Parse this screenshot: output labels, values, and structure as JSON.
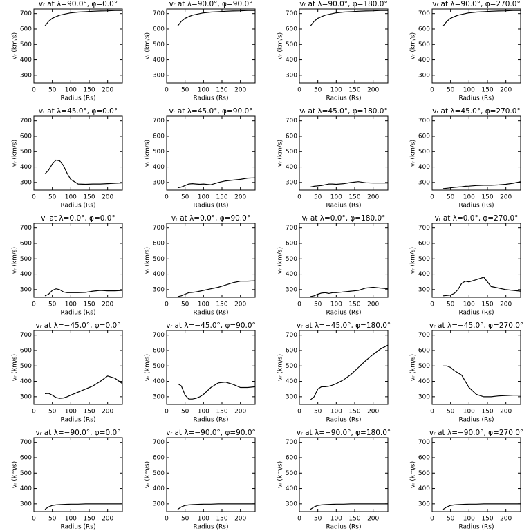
{
  "chart_data": [
    {
      "type": "line",
      "title": "vᵣ at λ=90.0°, φ=0.0°",
      "xlabel": "Radius (Rs)",
      "ylabel": "vᵣ (km/s)",
      "color": "#000000",
      "xlim": [
        0,
        240
      ],
      "ylim": [
        250,
        730
      ],
      "xticks": [
        0,
        50,
        100,
        150,
        200
      ],
      "yticks": [
        300,
        400,
        500,
        600,
        700
      ],
      "x": [
        30,
        40,
        50,
        60,
        70,
        80,
        90,
        100,
        120,
        140,
        160,
        180,
        200,
        220,
        240
      ],
      "values": [
        620,
        650,
        670,
        680,
        690,
        695,
        700,
        705,
        710,
        712,
        715,
        717,
        718,
        720,
        720
      ]
    },
    {
      "type": "line",
      "title": "vᵣ at λ=90.0°, φ=90.0°",
      "xlabel": "Radius (Rs)",
      "ylabel": "vᵣ (km/s)",
      "color": "#000000",
      "xlim": [
        0,
        240
      ],
      "ylim": [
        250,
        730
      ],
      "xticks": [
        0,
        50,
        100,
        150,
        200
      ],
      "yticks": [
        300,
        400,
        500,
        600,
        700
      ],
      "x": [
        30,
        40,
        50,
        60,
        70,
        80,
        90,
        100,
        120,
        140,
        160,
        180,
        200,
        220,
        240
      ],
      "values": [
        620,
        650,
        670,
        680,
        690,
        695,
        700,
        705,
        710,
        712,
        715,
        717,
        718,
        720,
        720
      ]
    },
    {
      "type": "line",
      "title": "vᵣ at λ=90.0°, φ=180.0°",
      "xlabel": "Radius (Rs)",
      "ylabel": "vᵣ (km/s)",
      "color": "#000000",
      "xlim": [
        0,
        240
      ],
      "ylim": [
        250,
        730
      ],
      "xticks": [
        0,
        50,
        100,
        150,
        200
      ],
      "yticks": [
        300,
        400,
        500,
        600,
        700
      ],
      "x": [
        30,
        40,
        50,
        60,
        70,
        80,
        90,
        100,
        120,
        140,
        160,
        180,
        200,
        220,
        240
      ],
      "values": [
        620,
        650,
        670,
        680,
        690,
        695,
        700,
        705,
        710,
        712,
        715,
        717,
        718,
        720,
        720
      ]
    },
    {
      "type": "line",
      "title": "vᵣ at λ=90.0°, φ=270.0°",
      "xlabel": "Radius (Rs)",
      "ylabel": "vᵣ (km/s)",
      "color": "#000000",
      "xlim": [
        0,
        240
      ],
      "ylim": [
        250,
        730
      ],
      "xticks": [
        0,
        50,
        100,
        150,
        200
      ],
      "yticks": [
        300,
        400,
        500,
        600,
        700
      ],
      "x": [
        30,
        40,
        50,
        60,
        70,
        80,
        90,
        100,
        120,
        140,
        160,
        180,
        200,
        220,
        240
      ],
      "values": [
        620,
        650,
        670,
        680,
        690,
        695,
        700,
        705,
        710,
        712,
        715,
        717,
        718,
        720,
        720
      ]
    },
    {
      "type": "line",
      "title": "vᵣ at λ=45.0°, φ=0.0°",
      "xlabel": "Radius (Rs)",
      "ylabel": "vᵣ (km/s)",
      "color": "#000000",
      "xlim": [
        0,
        240
      ],
      "ylim": [
        250,
        730
      ],
      "xticks": [
        0,
        50,
        100,
        150,
        200
      ],
      "yticks": [
        300,
        400,
        500,
        600,
        700
      ],
      "x": [
        30,
        40,
        50,
        60,
        70,
        80,
        90,
        100,
        120,
        140,
        160,
        180,
        200,
        220,
        240
      ],
      "values": [
        355,
        380,
        420,
        445,
        440,
        410,
        360,
        320,
        290,
        288,
        290,
        290,
        292,
        295,
        297
      ]
    },
    {
      "type": "line",
      "title": "vᵣ at λ=45.0°, φ=90.0°",
      "xlabel": "Radius (Rs)",
      "ylabel": "vᵣ (km/s)",
      "color": "#000000",
      "xlim": [
        0,
        240
      ],
      "ylim": [
        250,
        730
      ],
      "xticks": [
        0,
        50,
        100,
        150,
        200
      ],
      "yticks": [
        300,
        400,
        500,
        600,
        700
      ],
      "x": [
        30,
        40,
        50,
        60,
        70,
        80,
        90,
        100,
        120,
        140,
        160,
        180,
        200,
        220,
        240
      ],
      "values": [
        265,
        270,
        280,
        290,
        292,
        290,
        288,
        290,
        285,
        300,
        310,
        315,
        320,
        328,
        330
      ]
    },
    {
      "type": "line",
      "title": "vᵣ at λ=45.0°, φ=180.0°",
      "xlabel": "Radius (Rs)",
      "ylabel": "vᵣ (km/s)",
      "color": "#000000",
      "xlim": [
        0,
        240
      ],
      "ylim": [
        250,
        730
      ],
      "xticks": [
        0,
        50,
        100,
        150,
        200
      ],
      "yticks": [
        300,
        400,
        500,
        600,
        700
      ],
      "x": [
        30,
        40,
        50,
        60,
        70,
        80,
        90,
        100,
        120,
        140,
        160,
        180,
        200,
        220,
        240
      ],
      "values": [
        270,
        275,
        278,
        280,
        285,
        290,
        290,
        288,
        292,
        300,
        305,
        298,
        296,
        296,
        296
      ]
    },
    {
      "type": "line",
      "title": "vᵣ at λ=45.0°, φ=270.0°",
      "xlabel": "Radius (Rs)",
      "ylabel": "vᵣ (km/s)",
      "color": "#000000",
      "xlim": [
        0,
        240
      ],
      "ylim": [
        250,
        730
      ],
      "xticks": [
        0,
        50,
        100,
        150,
        200
      ],
      "yticks": [
        300,
        400,
        500,
        600,
        700
      ],
      "x": [
        30,
        40,
        50,
        60,
        70,
        80,
        90,
        100,
        120,
        140,
        160,
        180,
        200,
        220,
        240
      ],
      "values": [
        260,
        262,
        265,
        268,
        270,
        272,
        275,
        276,
        280,
        282,
        282,
        284,
        288,
        295,
        305
      ]
    },
    {
      "type": "line",
      "title": "vᵣ at λ=0.0°, φ=0.0°",
      "xlabel": "Radius (Rs)",
      "ylabel": "vᵣ (km/s)",
      "color": "#000000",
      "xlim": [
        0,
        240
      ],
      "ylim": [
        250,
        730
      ],
      "xticks": [
        0,
        50,
        100,
        150,
        200
      ],
      "yticks": [
        300,
        400,
        500,
        600,
        700
      ],
      "x": [
        30,
        40,
        50,
        60,
        70,
        80,
        90,
        100,
        120,
        140,
        160,
        180,
        200,
        220,
        240
      ],
      "values": [
        260,
        270,
        295,
        305,
        300,
        285,
        280,
        280,
        280,
        282,
        290,
        295,
        292,
        292,
        295
      ]
    },
    {
      "type": "line",
      "title": "vᵣ at λ=0.0°, φ=90.0°",
      "xlabel": "Radius (Rs)",
      "ylabel": "vᵣ (km/s)",
      "color": "#000000",
      "xlim": [
        0,
        240
      ],
      "ylim": [
        250,
        730
      ],
      "xticks": [
        0,
        50,
        100,
        150,
        200
      ],
      "yticks": [
        300,
        400,
        500,
        600,
        700
      ],
      "x": [
        30,
        40,
        50,
        60,
        70,
        80,
        90,
        100,
        120,
        140,
        160,
        180,
        200,
        220,
        240
      ],
      "values": [
        255,
        260,
        270,
        280,
        282,
        285,
        290,
        295,
        305,
        315,
        330,
        345,
        355,
        355,
        357
      ]
    },
    {
      "type": "line",
      "title": "vᵣ at λ=0.0°, φ=180.0°",
      "xlabel": "Radius (Rs)",
      "ylabel": "vᵣ (km/s)",
      "color": "#000000",
      "xlim": [
        0,
        240
      ],
      "ylim": [
        250,
        730
      ],
      "xticks": [
        0,
        50,
        100,
        150,
        200
      ],
      "yticks": [
        300,
        400,
        500,
        600,
        700
      ],
      "x": [
        30,
        40,
        50,
        60,
        70,
        80,
        90,
        100,
        120,
        140,
        160,
        180,
        200,
        220,
        240
      ],
      "values": [
        255,
        260,
        270,
        278,
        280,
        275,
        280,
        280,
        285,
        290,
        295,
        310,
        315,
        310,
        305
      ]
    },
    {
      "type": "line",
      "title": "vᵣ at λ=0.0°, φ=270.0°",
      "xlabel": "Radius (Rs)",
      "ylabel": "vᵣ (km/s)",
      "color": "#000000",
      "xlim": [
        0,
        240
      ],
      "ylim": [
        250,
        730
      ],
      "xticks": [
        0,
        50,
        100,
        150,
        200
      ],
      "yticks": [
        300,
        400,
        500,
        600,
        700
      ],
      "x": [
        30,
        40,
        50,
        60,
        70,
        80,
        90,
        100,
        120,
        140,
        160,
        180,
        200,
        220,
        240
      ],
      "values": [
        260,
        262,
        265,
        275,
        300,
        340,
        355,
        350,
        365,
        380,
        320,
        310,
        300,
        295,
        290
      ]
    },
    {
      "type": "line",
      "title": "vᵣ at λ=−45.0°, φ=0.0°",
      "xlabel": "Radius (Rs)",
      "ylabel": "vᵣ (km/s)",
      "color": "#000000",
      "xlim": [
        0,
        240
      ],
      "ylim": [
        250,
        730
      ],
      "xticks": [
        0,
        50,
        100,
        150,
        200
      ],
      "yticks": [
        300,
        400,
        500,
        600,
        700
      ],
      "x": [
        30,
        40,
        50,
        60,
        70,
        80,
        90,
        100,
        120,
        140,
        160,
        180,
        200,
        220,
        240
      ],
      "values": [
        320,
        322,
        310,
        295,
        290,
        292,
        300,
        310,
        330,
        350,
        370,
        400,
        435,
        420,
        385
      ]
    },
    {
      "type": "line",
      "title": "vᵣ at λ=−45.0°, φ=90.0°",
      "xlabel": "Radius (Rs)",
      "ylabel": "vᵣ (km/s)",
      "color": "#000000",
      "xlim": [
        0,
        240
      ],
      "ylim": [
        250,
        730
      ],
      "xticks": [
        0,
        50,
        100,
        150,
        200
      ],
      "yticks": [
        300,
        400,
        500,
        600,
        700
      ],
      "x": [
        30,
        40,
        50,
        60,
        70,
        80,
        90,
        100,
        120,
        140,
        160,
        180,
        200,
        220,
        240
      ],
      "values": [
        385,
        370,
        310,
        285,
        285,
        290,
        300,
        315,
        360,
        390,
        395,
        380,
        360,
        360,
        365
      ]
    },
    {
      "type": "line",
      "title": "vᵣ at λ=−45.0°, φ=180.0°",
      "xlabel": "Radius (Rs)",
      "ylabel": "vᵣ (km/s)",
      "color": "#000000",
      "xlim": [
        0,
        240
      ],
      "ylim": [
        250,
        730
      ],
      "xticks": [
        0,
        50,
        100,
        150,
        200
      ],
      "yticks": [
        300,
        400,
        500,
        600,
        700
      ],
      "x": [
        30,
        40,
        50,
        60,
        70,
        80,
        90,
        100,
        120,
        140,
        160,
        180,
        200,
        220,
        240
      ],
      "values": [
        280,
        300,
        350,
        365,
        365,
        368,
        375,
        385,
        410,
        445,
        490,
        535,
        575,
        610,
        635
      ]
    },
    {
      "type": "line",
      "title": "vᵣ at λ=−45.0°, φ=270.0°",
      "xlabel": "Radius (Rs)",
      "ylabel": "vᵣ (km/s)",
      "color": "#000000",
      "xlim": [
        0,
        240
      ],
      "ylim": [
        250,
        730
      ],
      "xticks": [
        0,
        50,
        100,
        150,
        200
      ],
      "yticks": [
        300,
        400,
        500,
        600,
        700
      ],
      "x": [
        30,
        40,
        50,
        60,
        70,
        80,
        90,
        100,
        120,
        140,
        160,
        180,
        200,
        220,
        240
      ],
      "values": [
        500,
        500,
        490,
        470,
        455,
        440,
        400,
        360,
        315,
        300,
        300,
        305,
        308,
        310,
        310
      ]
    },
    {
      "type": "line",
      "title": "vᵣ at λ=−90.0°, φ=0.0°",
      "xlabel": "Radius (Rs)",
      "ylabel": "vᵣ (km/s)",
      "color": "#000000",
      "xlim": [
        0,
        240
      ],
      "ylim": [
        250,
        730
      ],
      "xticks": [
        0,
        50,
        100,
        150,
        200
      ],
      "yticks": [
        300,
        400,
        500,
        600,
        700
      ],
      "x": [
        30,
        40,
        50,
        60,
        70,
        80,
        90,
        100,
        120,
        140,
        160,
        180,
        200,
        220,
        240
      ],
      "values": [
        265,
        280,
        290,
        293,
        295,
        296,
        297,
        298,
        298,
        300,
        300,
        300,
        300,
        300,
        300
      ]
    },
    {
      "type": "line",
      "title": "vᵣ at λ=−90.0°, φ=90.0°",
      "xlabel": "Radius (Rs)",
      "ylabel": "vᵣ (km/s)",
      "color": "#000000",
      "xlim": [
        0,
        240
      ],
      "ylim": [
        250,
        730
      ],
      "xticks": [
        0,
        50,
        100,
        150,
        200
      ],
      "yticks": [
        300,
        400,
        500,
        600,
        700
      ],
      "x": [
        30,
        40,
        50,
        60,
        70,
        80,
        90,
        100,
        120,
        140,
        160,
        180,
        200,
        220,
        240
      ],
      "values": [
        265,
        280,
        290,
        293,
        295,
        296,
        297,
        298,
        298,
        300,
        300,
        300,
        300,
        300,
        300
      ]
    },
    {
      "type": "line",
      "title": "vᵣ at λ=−90.0°, φ=180.0°",
      "xlabel": "Radius (Rs)",
      "ylabel": "vᵣ (km/s)",
      "color": "#000000",
      "xlim": [
        0,
        240
      ],
      "ylim": [
        250,
        730
      ],
      "xticks": [
        0,
        50,
        100,
        150,
        200
      ],
      "yticks": [
        300,
        400,
        500,
        600,
        700
      ],
      "x": [
        30,
        40,
        50,
        60,
        70,
        80,
        90,
        100,
        120,
        140,
        160,
        180,
        200,
        220,
        240
      ],
      "values": [
        265,
        280,
        290,
        293,
        295,
        296,
        297,
        298,
        298,
        300,
        300,
        300,
        300,
        300,
        300
      ]
    },
    {
      "type": "line",
      "title": "vᵣ at λ=−90.0°, φ=270.0°",
      "xlabel": "Radius (Rs)",
      "ylabel": "vᵣ (km/s)",
      "color": "#000000",
      "xlim": [
        0,
        240
      ],
      "ylim": [
        250,
        730
      ],
      "xticks": [
        0,
        50,
        100,
        150,
        200
      ],
      "yticks": [
        300,
        400,
        500,
        600,
        700
      ],
      "x": [
        30,
        40,
        50,
        60,
        70,
        80,
        90,
        100,
        120,
        140,
        160,
        180,
        200,
        220,
        240
      ],
      "values": [
        265,
        280,
        290,
        293,
        295,
        296,
        297,
        298,
        298,
        300,
        300,
        300,
        300,
        300,
        300
      ]
    }
  ]
}
